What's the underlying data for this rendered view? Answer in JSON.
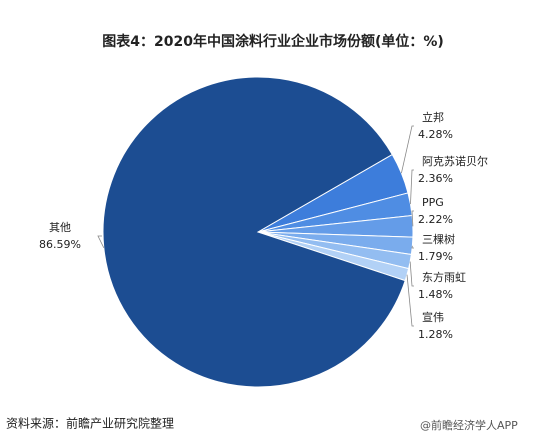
{
  "chart_data": {
    "type": "pie",
    "title": "图表4：2020年中国涂料行业企业市场份额(单位：%)",
    "categories": [
      "立邦",
      "阿克苏诺贝尔",
      "PPG",
      "三棵树",
      "东方雨虹",
      "宣伟",
      "其他"
    ],
    "values": [
      4.28,
      2.36,
      2.22,
      1.79,
      1.48,
      1.28,
      86.59
    ],
    "value_labels": [
      "4.28%",
      "2.36%",
      "2.22%",
      "1.79%",
      "1.48%",
      "1.28%",
      "86.59%"
    ],
    "colors": [
      "#3d7ddb",
      "#4f8de3",
      "#649ce8",
      "#7aaced",
      "#93bdf1",
      "#b2d1f6",
      "#1c4d92"
    ],
    "source": "资料来源：前瞻产业研究院整理",
    "footer": "@前瞻经济学人APP"
  }
}
